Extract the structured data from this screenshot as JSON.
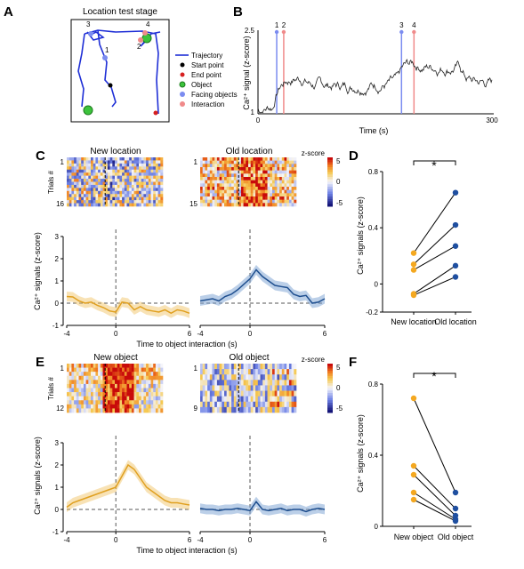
{
  "panel_letters": {
    "a": "A",
    "b": "B",
    "c": "C",
    "d": "D",
    "e": "E",
    "f": "F"
  },
  "panel_a": {
    "title": "Location test stage",
    "point_labels": [
      "1",
      "2",
      "3",
      "4"
    ],
    "legend": [
      "Trajectory",
      "Start point",
      "End point",
      "Object",
      "Facing objects",
      "Interaction"
    ],
    "colors": {
      "trajectory": "#1f2fd6",
      "start": "#000000",
      "end": "#d62020",
      "object": "#3cc33c",
      "facing": "#7b8cf0",
      "interaction": "#f08a8a"
    }
  },
  "chart_data": [
    {
      "type": "line",
      "panel": "B",
      "xlabel": "Time (s)",
      "ylabel": "Ca²⁺ signal (z-score)",
      "xlim": [
        0,
        300
      ],
      "ylim": [
        1,
        2.5
      ],
      "x_ticks": [
        "0",
        "300"
      ],
      "y_ticks": [
        "1",
        "2.5"
      ],
      "event_labels": [
        "1",
        "2",
        "3",
        "4"
      ],
      "events": [
        {
          "x": 24,
          "label": "1",
          "kind": "facing"
        },
        {
          "x": 33,
          "label": "2",
          "kind": "interaction"
        },
        {
          "x": 184,
          "label": "3",
          "kind": "facing"
        },
        {
          "x": 200,
          "label": "4",
          "kind": "interaction"
        }
      ]
    },
    {
      "type": "heatmap",
      "panel": "C",
      "titles": [
        "New location",
        "Old location"
      ],
      "colorbar_label": "z-score",
      "colorbar_ticks": [
        "5",
        "0",
        "-5"
      ],
      "ylabel": "Trials #",
      "left_rows": [
        "1",
        "16"
      ],
      "right_rows": [
        "1",
        "15"
      ]
    },
    {
      "type": "line",
      "panel": "C",
      "xlabel": "Time to object interaction (s)",
      "ylabel": "Ca²⁺ signals (z-score)",
      "xlim": [
        -4,
        6
      ],
      "ylim": [
        -1,
        3
      ],
      "x_ticks": [
        "-4",
        "0",
        "6"
      ],
      "y_ticks": [
        "3",
        "2",
        "1",
        "0",
        "-1"
      ],
      "series": [
        {
          "name": "New location",
          "x": [
            -4,
            -3.5,
            -3,
            -2.5,
            -2,
            -1.5,
            -1,
            -0.5,
            0,
            0.5,
            1,
            1.5,
            2,
            2.5,
            3,
            3.5,
            4,
            4.5,
            5,
            5.5,
            6
          ],
          "values": [
            0.3,
            0.28,
            0.1,
            0.0,
            0.05,
            -0.1,
            -0.2,
            -0.35,
            -0.4,
            0.05,
            0.0,
            -0.3,
            -0.15,
            -0.3,
            -0.35,
            -0.4,
            -0.3,
            -0.45,
            -0.3,
            -0.35,
            -0.45
          ]
        },
        {
          "name": "Old location",
          "x": [
            -4,
            -3.5,
            -3,
            -2.5,
            -2,
            -1.5,
            -1,
            -0.5,
            0,
            0.5,
            1,
            1.5,
            2,
            2.5,
            3,
            3.5,
            4,
            4.5,
            5,
            5.5,
            6
          ],
          "values": [
            0.1,
            0.15,
            0.2,
            0.1,
            0.3,
            0.4,
            0.6,
            0.85,
            1.1,
            1.5,
            1.2,
            1.0,
            0.8,
            0.75,
            0.7,
            0.4,
            0.3,
            0.35,
            0.0,
            0.05,
            0.2
          ]
        }
      ]
    },
    {
      "type": "scatter",
      "panel": "D",
      "ylabel": "Ca²⁺ signals (z-score)",
      "categories": [
        "New location",
        "Old location"
      ],
      "ylim": [
        -0.2,
        0.8
      ],
      "y_ticks": [
        "0.8",
        "0.4",
        "0",
        "-0.2"
      ],
      "significance": "*",
      "series": [
        {
          "name": "New location",
          "values": [
            0.22,
            0.14,
            0.1,
            -0.07,
            -0.08
          ]
        },
        {
          "name": "Old location",
          "values": [
            0.65,
            0.42,
            0.27,
            0.13,
            0.05
          ]
        }
      ]
    },
    {
      "type": "heatmap",
      "panel": "E",
      "titles": [
        "New object",
        "Old object"
      ],
      "colorbar_label": "z-score",
      "colorbar_ticks": [
        "5",
        "0",
        "-5"
      ],
      "ylabel": "Trials #",
      "left_rows": [
        "1",
        "12"
      ],
      "right_rows": [
        "1",
        "9"
      ]
    },
    {
      "type": "line",
      "panel": "E",
      "xlabel": "Time to object interaction (s)",
      "ylabel": "Ca²⁺ signals (z-score)",
      "xlim": [
        -4,
        6
      ],
      "ylim": [
        -1,
        3
      ],
      "x_ticks": [
        "-4",
        "0",
        "6"
      ],
      "y_ticks": [
        "3",
        "2",
        "1",
        "0",
        "-1"
      ],
      "series": [
        {
          "name": "New object",
          "x": [
            -4,
            -3.5,
            -3,
            -2.5,
            -2,
            -1.5,
            -1,
            -0.5,
            0,
            0.5,
            1,
            1.5,
            2,
            2.5,
            3,
            3.5,
            4,
            4.5,
            5,
            5.5,
            6
          ],
          "values": [
            0.1,
            0.3,
            0.4,
            0.5,
            0.6,
            0.7,
            0.8,
            0.9,
            1.0,
            1.5,
            2.0,
            1.8,
            1.4,
            1.0,
            0.8,
            0.6,
            0.4,
            0.3,
            0.3,
            0.25,
            0.2
          ]
        },
        {
          "name": "Old object",
          "x": [
            -4,
            -3.5,
            -3,
            -2.5,
            -2,
            -1.5,
            -1,
            -0.5,
            0,
            0.5,
            1,
            1.5,
            2,
            2.5,
            3,
            3.5,
            4,
            4.5,
            5,
            5.5,
            6
          ],
          "values": [
            0.05,
            0.0,
            0.0,
            -0.05,
            0.0,
            0.0,
            0.05,
            0.0,
            -0.05,
            0.35,
            0.0,
            -0.05,
            0.0,
            0.05,
            -0.05,
            0.0,
            0.0,
            -0.1,
            0.0,
            0.05,
            0.0
          ]
        }
      ]
    },
    {
      "type": "scatter",
      "panel": "F",
      "ylabel": "Ca²⁺ signals (z-score)",
      "categories": [
        "New object",
        "Old object"
      ],
      "ylim": [
        0,
        0.8
      ],
      "y_ticks": [
        "0.8",
        "0.4",
        "0"
      ],
      "significance": "*",
      "series": [
        {
          "name": "New object",
          "values": [
            0.72,
            0.34,
            0.29,
            0.19,
            0.15
          ]
        },
        {
          "name": "Old object",
          "values": [
            0.19,
            0.1,
            0.06,
            0.04,
            0.03
          ]
        }
      ]
    }
  ]
}
